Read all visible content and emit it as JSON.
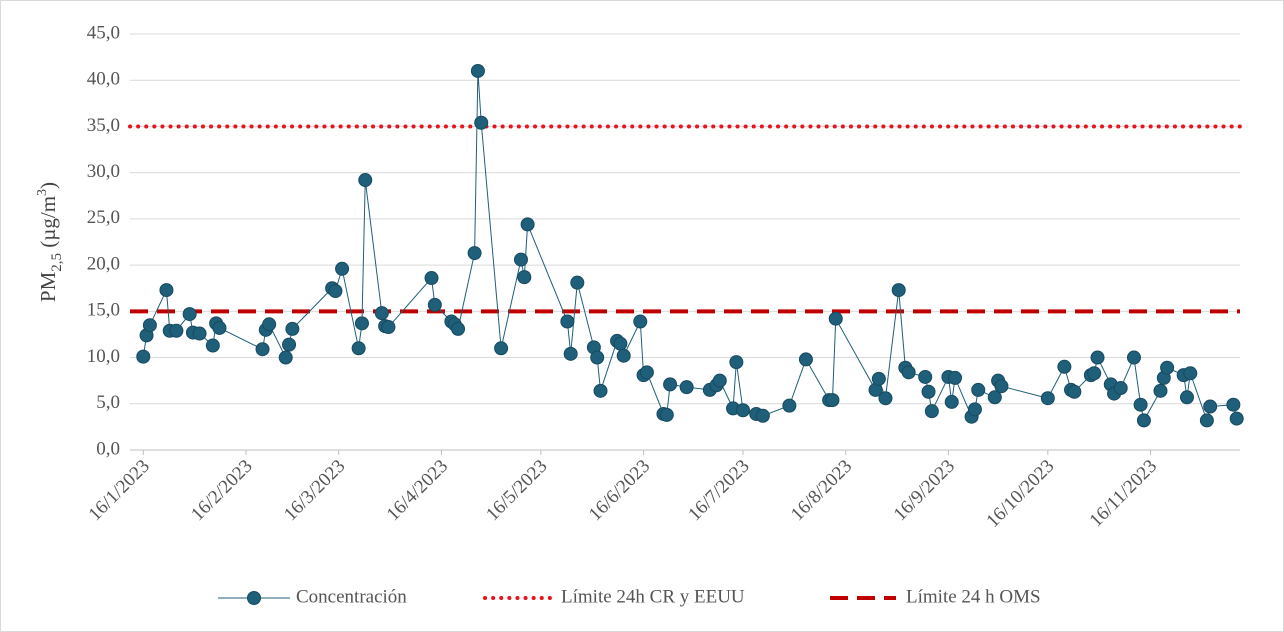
{
  "chart_data": {
    "type": "line",
    "ylabel": {
      "main": "PM",
      "sub": "2,5",
      "text": " (µg/m",
      "sup": "3",
      "end": ")"
    },
    "x": [
      "2023-01-16",
      "2023-01-17",
      "2023-01-18",
      "2023-01-23",
      "2023-01-24",
      "2023-01-26",
      "2023-01-30",
      "2023-01-31",
      "2023-02-02",
      "2023-02-06",
      "2023-02-07",
      "2023-02-08",
      "2023-02-21",
      "2023-02-22",
      "2023-02-23",
      "2023-02-28",
      "2023-03-01",
      "2023-03-02",
      "2023-03-14",
      "2023-03-15",
      "2023-03-17",
      "2023-03-22",
      "2023-03-23",
      "2023-03-24",
      "2023-03-29",
      "2023-03-30",
      "2023-03-31",
      "2023-04-13",
      "2023-04-14",
      "2023-04-19",
      "2023-04-20",
      "2023-04-21",
      "2023-04-26",
      "2023-04-27",
      "2023-04-28",
      "2023-05-04",
      "2023-05-10",
      "2023-05-11",
      "2023-05-12",
      "2023-05-24",
      "2023-05-25",
      "2023-05-27",
      "2023-06-01",
      "2023-06-02",
      "2023-06-03",
      "2023-06-08",
      "2023-06-09",
      "2023-06-10",
      "2023-06-15",
      "2023-06-16",
      "2023-06-17",
      "2023-06-22",
      "2023-06-23",
      "2023-06-24",
      "2023-06-29",
      "2023-07-06",
      "2023-07-08",
      "2023-07-09",
      "2023-07-13",
      "2023-07-14",
      "2023-07-16",
      "2023-07-20",
      "2023-07-22",
      "2023-07-30",
      "2023-08-04",
      "2023-08-11",
      "2023-08-12",
      "2023-08-13",
      "2023-08-25",
      "2023-08-26",
      "2023-08-28",
      "2023-09-01",
      "2023-09-03",
      "2023-09-04",
      "2023-09-09",
      "2023-09-10",
      "2023-09-11",
      "2023-09-16",
      "2023-09-17",
      "2023-09-18",
      "2023-09-23",
      "2023-09-24",
      "2023-09-25",
      "2023-09-30",
      "2023-10-01",
      "2023-10-02",
      "2023-10-16",
      "2023-10-21",
      "2023-10-23",
      "2023-10-24",
      "2023-10-29",
      "2023-10-30",
      "2023-10-31",
      "2023-11-04",
      "2023-11-05",
      "2023-11-07",
      "2023-11-11",
      "2023-11-13",
      "2023-11-14",
      "2023-11-19",
      "2023-11-20",
      "2023-11-21",
      "2023-11-26",
      "2023-11-27",
      "2023-11-28",
      "2023-12-03",
      "2023-12-04",
      "2023-12-11",
      "2023-12-12"
    ],
    "series": [
      {
        "name": "Concentración",
        "color": "#1f5f7a",
        "values": [
          10.1,
          12.4,
          13.5,
          17.3,
          12.9,
          12.9,
          14.7,
          12.7,
          12.6,
          11.3,
          13.7,
          13.2,
          10.9,
          13.0,
          13.6,
          10.0,
          11.4,
          13.1,
          17.5,
          17.2,
          19.6,
          11.0,
          13.7,
          29.2,
          14.8,
          13.4,
          13.3,
          18.6,
          15.7,
          13.9,
          13.6,
          13.1,
          21.3,
          41.0,
          35.4,
          11.0,
          20.6,
          18.7,
          24.4,
          13.9,
          10.4,
          18.1,
          11.1,
          10.0,
          6.4,
          11.8,
          11.5,
          10.2,
          13.9,
          8.1,
          8.4,
          3.9,
          3.8,
          7.1,
          6.8,
          6.5,
          7.0,
          7.5,
          4.5,
          9.5,
          4.3,
          3.9,
          3.7,
          4.8,
          9.8,
          5.4,
          5.4,
          14.2,
          6.5,
          7.7,
          5.6,
          17.3,
          8.9,
          8.4,
          7.9,
          6.3,
          4.2,
          7.9,
          5.2,
          7.8,
          3.6,
          4.4,
          6.5,
          5.7,
          7.5,
          6.9,
          5.6,
          9.0,
          6.5,
          6.3,
          8.1,
          8.3,
          10.0,
          7.1,
          6.1,
          6.7,
          10.0,
          4.9,
          3.2,
          6.4,
          7.8,
          8.9,
          8.1,
          5.7,
          8.3,
          3.2,
          4.7,
          4.9,
          3.4
        ]
      }
    ],
    "reference_lines": [
      {
        "name": "Límite 24h CR y EEUU",
        "value": 35,
        "color": "#e8141c",
        "style": "dotted"
      },
      {
        "name": "Límite 24 h OMS",
        "value": 15,
        "color": "#c00000",
        "style": "dashed"
      }
    ],
    "xlim": [
      "2023-01-12",
      "2023-12-13"
    ],
    "xticks": [
      {
        "value": "2023-01-16",
        "label": "16/1/2023"
      },
      {
        "value": "2023-02-16",
        "label": "16/2/2023"
      },
      {
        "value": "2023-03-16",
        "label": "16/3/2023"
      },
      {
        "value": "2023-04-16",
        "label": "16/4/2023"
      },
      {
        "value": "2023-05-16",
        "label": "16/5/2023"
      },
      {
        "value": "2023-06-16",
        "label": "16/6/2023"
      },
      {
        "value": "2023-07-16",
        "label": "16/7/2023"
      },
      {
        "value": "2023-08-16",
        "label": "16/8/2023"
      },
      {
        "value": "2023-09-16",
        "label": "16/9/2023"
      },
      {
        "value": "2023-10-16",
        "label": "16/10/2023"
      },
      {
        "value": "2023-11-16",
        "label": "16/11/2023"
      }
    ],
    "ylim": [
      0,
      45
    ],
    "yticks": [
      {
        "value": 0,
        "label": "0,0"
      },
      {
        "value": 5,
        "label": "5,0"
      },
      {
        "value": 10,
        "label": "10,0"
      },
      {
        "value": 15,
        "label": "15,0"
      },
      {
        "value": 20,
        "label": "20,0"
      },
      {
        "value": 25,
        "label": "25,0"
      },
      {
        "value": 30,
        "label": "30,0"
      },
      {
        "value": 35,
        "label": "35,0"
      },
      {
        "value": 40,
        "label": "40,0"
      },
      {
        "value": 45,
        "label": "45,0"
      }
    ],
    "grid": true,
    "legend": "bottom"
  }
}
